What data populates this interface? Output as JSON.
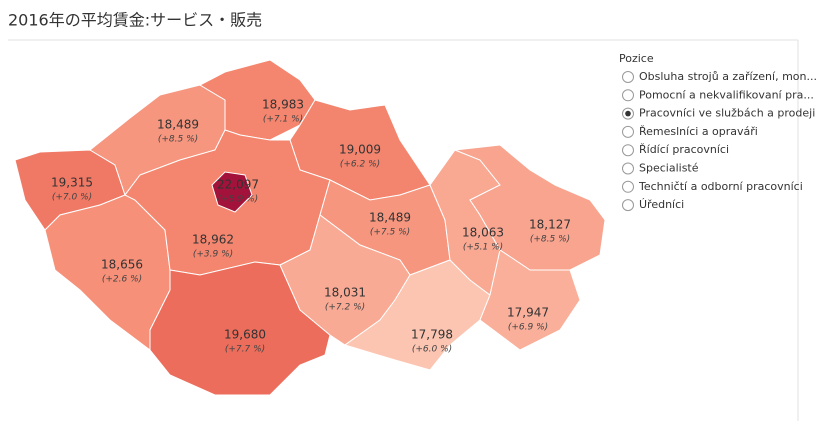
{
  "title": "2016年の平均賃金:サービス・販売",
  "regions": [
    {
      "value": 22097,
      "value_label": "22,097",
      "change": "(+5.9 %)"
    },
    {
      "value": 19315,
      "value_label": "19,315",
      "change": "(+7.0 %)"
    },
    {
      "value": 18489,
      "value_label": "18,489",
      "change": "(+8.5 %)"
    },
    {
      "value": 18983,
      "value_label": "18,983",
      "change": "(+7.1 %)"
    },
    {
      "value": 19009,
      "value_label": "19,009",
      "change": "(+6.2 %)"
    },
    {
      "value": 18656,
      "value_label": "18,656",
      "change": "(+2.6 %)"
    },
    {
      "value": 18962,
      "value_label": "18,962",
      "change": "(+3.9 %)"
    },
    {
      "value": 18489,
      "value_label": "18,489",
      "change": "(+7.5 %)"
    },
    {
      "value": 19680,
      "value_label": "19,680",
      "change": "(+7.7 %)"
    },
    {
      "value": 18031,
      "value_label": "18,031",
      "change": "(+7.2 %)"
    },
    {
      "value": 17798,
      "value_label": "17,798",
      "change": "(+6.0 %)"
    },
    {
      "value": 18063,
      "value_label": "18,063",
      "change": "(+5.1 %)"
    },
    {
      "value": 18127,
      "value_label": "18,127",
      "change": "(+8.5 %)"
    },
    {
      "value": 17947,
      "value_label": "17,947",
      "change": "(+6.9 %)"
    }
  ],
  "legend": {
    "title": "Pozice",
    "selected": 2,
    "options": [
      "Obsluha strojů a zařízení, mon...",
      "Pomocní a nekvalifikovaní pra...",
      "Pracovníci ve službách a prodeji",
      "Řemeslníci a opraváři",
      "Řídící pracovníci",
      "Specialisté",
      "Techničtí a odborní pracovníci",
      "Úředníci"
    ]
  }
}
